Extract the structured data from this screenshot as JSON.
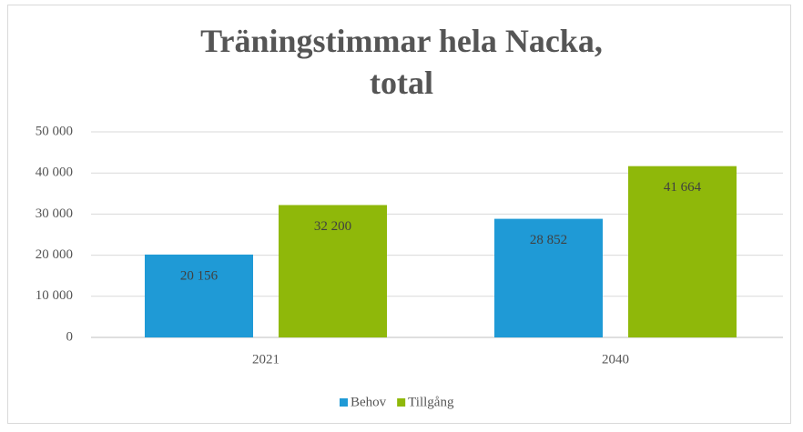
{
  "chart_data": {
    "type": "bar",
    "title": "Träningstimmar hela Nacka, total",
    "categories": [
      "2021",
      "2040"
    ],
    "series": [
      {
        "name": "Behov",
        "color": "#1f9ad6",
        "values": [
          20156,
          28852
        ],
        "value_labels": [
          "20 156",
          "28 852"
        ]
      },
      {
        "name": "Tillgång",
        "color": "#8fb80a",
        "values": [
          32200,
          41664
        ],
        "value_labels": [
          "32 200",
          "41 664"
        ]
      }
    ],
    "ylim": [
      0,
      50000
    ],
    "yticks": [
      0,
      {
        "value": 10000,
        "label": "10 000"
      },
      {
        "value": 20000,
        "label": "20 000"
      },
      {
        "value": 30000,
        "label": "30 000"
      },
      {
        "value": 40000,
        "label": "40 000"
      },
      {
        "value": 50000,
        "label": "50 000"
      }
    ],
    "grid": true,
    "legend": "bottom"
  }
}
